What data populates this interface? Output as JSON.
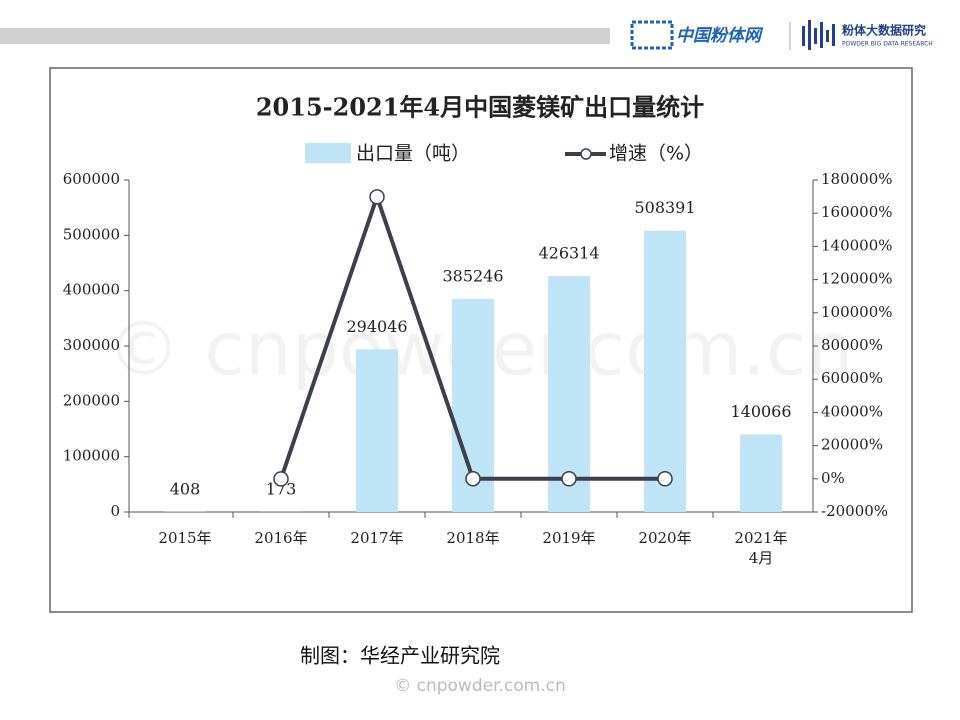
{
  "header": {
    "brand": "中国粉体网",
    "research": "粉体大数据研究",
    "research_en": "POWDER BIG DATA RESEARCH"
  },
  "chart_data": {
    "type": "bar",
    "title": "2015-2021年4月中国菱镁矿出口量统计",
    "categories": [
      "2015年",
      "2016年",
      "2017年",
      "2018年",
      "2019年",
      "2020年",
      "2021年\n4月"
    ],
    "series": [
      {
        "name": "出口量（吨）",
        "color": "#bfe4f6",
        "values": [
          408,
          173,
          294046,
          385246,
          426314,
          508391,
          140066
        ]
      },
      {
        "name": "增速（%）",
        "type": "line",
        "axis": "y2",
        "color": "#3b404b",
        "values": [
          null,
          -58,
          169868,
          31,
          11,
          19,
          null
        ]
      }
    ],
    "ylim": [
      0,
      600000
    ],
    "yticks": [
      0,
      100000,
      200000,
      300000,
      400000,
      500000,
      600000
    ],
    "y2lim": [
      -20000,
      180000
    ],
    "y2ticks": [
      {
        "value": -20000,
        "label": "-20000%"
      },
      {
        "value": 0,
        "label": "0%"
      },
      {
        "value": 20000,
        "label": "20000%"
      },
      {
        "value": 40000,
        "label": "40000%"
      },
      {
        "value": 60000,
        "label": "60000%"
      },
      {
        "value": 80000,
        "label": "80000%"
      },
      {
        "value": 100000,
        "label": "100000%"
      },
      {
        "value": 120000,
        "label": "120000%"
      },
      {
        "value": 140000,
        "label": "140000%"
      },
      {
        "value": 160000,
        "label": "160000%"
      },
      {
        "value": 180000,
        "label": "180000%"
      }
    ],
    "legend": "top",
    "grid": false
  },
  "footer": {
    "source": "制图：华经产业研究院",
    "copyright": "© cnpowder.com.cn"
  }
}
